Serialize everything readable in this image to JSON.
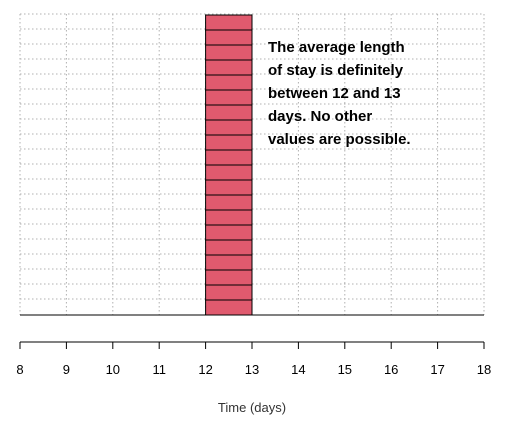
{
  "chart_data": {
    "type": "bar",
    "title": "",
    "xlabel": "Time (days)",
    "ylabel": "",
    "xlim": [
      8,
      18
    ],
    "x_ticks": [
      "8",
      "9",
      "10",
      "11",
      "12",
      "13",
      "14",
      "15",
      "16",
      "17",
      "18"
    ],
    "grid": true,
    "bars": [
      {
        "x_start": 12,
        "x_end": 13,
        "stacked_units": 20,
        "color": "#e05a6e"
      }
    ],
    "annotation": {
      "lines": [
        "The average length",
        "of stay is definitely",
        "between 12 and 13",
        "days. No other",
        "values are possible."
      ]
    },
    "colors": {
      "bar_fill": "#e05a6e",
      "bar_stroke": "#000000",
      "grid": "#b0b0b0",
      "axis": "#000000"
    }
  }
}
